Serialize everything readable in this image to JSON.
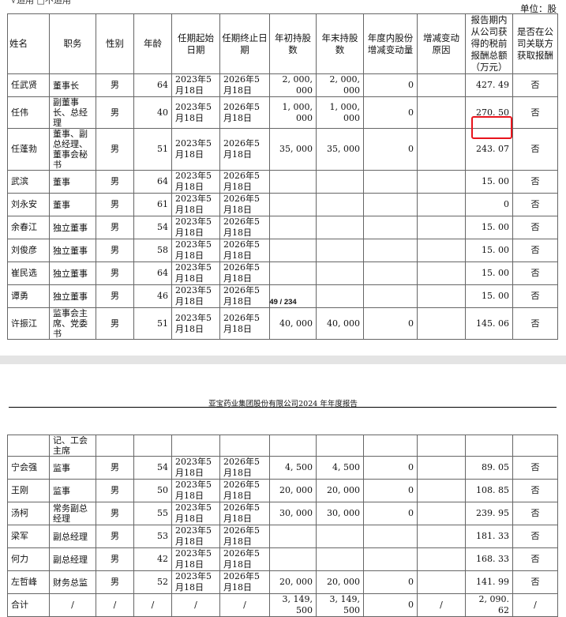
{
  "page1": {
    "top_note": "√适用 □不适用",
    "unit_label": "单位：股",
    "page_number": "49 / 234"
  },
  "page2": {
    "running_header": "亚宝药业集团股份有限公司2024 年年度报告"
  },
  "table": {
    "headers": [
      "姓名",
      "职务",
      "性别",
      "年龄",
      "任期起始日期",
      "任期终止日期",
      "年初持股数",
      "年末持股数",
      "年度内股份增减变动量",
      "增减变动原因",
      "报告期内从公司获得的税前报酬总额（万元）",
      "是否在公司关联方获取报酬"
    ],
    "rows_page1": [
      [
        "任武贤",
        "董事长",
        "男",
        "64",
        "2023年5月18日",
        "2026年5月18日",
        "2, 000, 000",
        "2, 000, 000",
        "0",
        "",
        "427. 49",
        "否"
      ],
      [
        "任伟",
        "副董事长、总经理",
        "男",
        "40",
        "2023年5月18日",
        "2026年5月18日",
        "1, 000, 000",
        "1, 000, 000",
        "0",
        "",
        "270. 50",
        "否"
      ],
      [
        "任蓬勃",
        "董事、副总经理、董事会秘书",
        "男",
        "51",
        "2023年5月18日",
        "2026年5月18日",
        "35, 000",
        "35, 000",
        "0",
        "",
        "243. 07",
        "否"
      ],
      [
        "武滨",
        "董事",
        "男",
        "64",
        "2023年5月18日",
        "2026年5月18日",
        "",
        "",
        "",
        "",
        "15. 00",
        "否"
      ],
      [
        "刘永安",
        "董事",
        "男",
        "61",
        "2023年5月18日",
        "2026年5月18日",
        "",
        "",
        "",
        "",
        "0",
        "否"
      ],
      [
        "余春江",
        "独立董事",
        "男",
        "54",
        "2023年5月18日",
        "2026年5月18日",
        "",
        "",
        "",
        "",
        "15. 00",
        "否"
      ],
      [
        "刘俊彦",
        "独立董事",
        "男",
        "58",
        "2023年5月18日",
        "2026年5月18日",
        "",
        "",
        "",
        "",
        "15. 00",
        "否"
      ],
      [
        "崔民选",
        "独立董事",
        "男",
        "64",
        "2023年5月18日",
        "2026年5月18日",
        "",
        "",
        "",
        "",
        "15. 00",
        "否"
      ],
      [
        "谭勇",
        "独立董事",
        "男",
        "46",
        "2023年5月18日",
        "2026年5月18日",
        "",
        "",
        "",
        "",
        "15. 00",
        "否"
      ],
      [
        "许振江",
        "监事会主席、党委书",
        "男",
        "51",
        "2023年5月18日",
        "2026年5月18日",
        "40, 000",
        "40, 000",
        "0",
        "",
        "145. 06",
        "否"
      ]
    ],
    "rows_page2": [
      [
        "",
        "记、工会主席",
        "",
        "",
        "",
        "",
        "",
        "",
        "",
        "",
        "",
        ""
      ],
      [
        "宁会强",
        "监事",
        "男",
        "54",
        "2023年5月18日",
        "2026年5月18日",
        "4, 500",
        "4, 500",
        "0",
        "",
        "89. 05",
        "否"
      ],
      [
        "王刚",
        "监事",
        "男",
        "50",
        "2023年5月18日",
        "2026年5月18日",
        "20, 000",
        "20, 000",
        "0",
        "",
        "108. 85",
        "否"
      ],
      [
        "汤柯",
        "常务副总经理",
        "男",
        "55",
        "2023年5月18日",
        "2026年5月18日",
        "30, 000",
        "30, 000",
        "0",
        "",
        "239. 95",
        "否"
      ],
      [
        "梁军",
        "副总经理",
        "男",
        "53",
        "2023年5月18日",
        "2026年5月18日",
        "",
        "",
        "",
        "",
        "181. 33",
        "否"
      ],
      [
        "何力",
        "副总经理",
        "男",
        "42",
        "2023年5月18日",
        "2026年5月18日",
        "",
        "",
        "",
        "",
        "168. 33",
        "否"
      ],
      [
        "左哲峰",
        "财务总监",
        "男",
        "52",
        "2023年5月18日",
        "2026年5月18日",
        "20, 000",
        "20, 000",
        "0",
        "",
        "141. 99",
        "否"
      ],
      [
        "合计",
        "/",
        "/",
        "/",
        "/",
        "/",
        "3, 149, 500",
        "3, 149, 500",
        "0",
        "/",
        "2, 090. 62",
        "/"
      ]
    ]
  },
  "highlight": {
    "cell": "243. 07",
    "color": "#e8141c"
  }
}
